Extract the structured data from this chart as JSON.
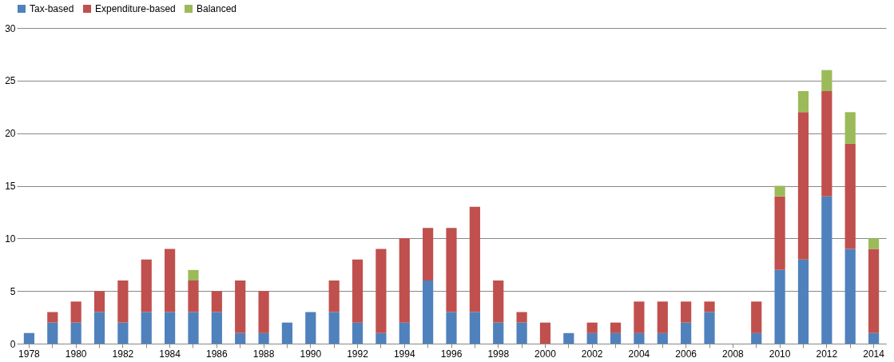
{
  "chart_data": {
    "type": "bar",
    "stacked": true,
    "legend": "top",
    "grid": "y",
    "categories": [
      "1978",
      null,
      "1980",
      null,
      "1982",
      null,
      "1984",
      null,
      "1986",
      null,
      "1988",
      null,
      "1990",
      null,
      "1992",
      null,
      "1994",
      null,
      "1996",
      null,
      "1998",
      null,
      "2000",
      null,
      "2002",
      null,
      "2004",
      null,
      "2006",
      null,
      "2008",
      null,
      "2010",
      null,
      "2012",
      null,
      "2014"
    ],
    "ylim": [
      0,
      30
    ],
    "yticks": [
      0,
      5,
      10,
      15,
      20,
      25,
      30
    ],
    "series": [
      {
        "name": "Tax-based",
        "color": "#4f81bd",
        "values": [
          1,
          2,
          2,
          3,
          2,
          3,
          3,
          3,
          3,
          1,
          1,
          2,
          3,
          3,
          2,
          1,
          2,
          6,
          3,
          3,
          2,
          2,
          0,
          1,
          1,
          1,
          1,
          1,
          2,
          3,
          0,
          1,
          7,
          8,
          14,
          9,
          1
        ]
      },
      {
        "name": "Expenditure-based",
        "color": "#c0504d",
        "values": [
          0,
          1,
          2,
          2,
          4,
          5,
          6,
          3,
          2,
          5,
          4,
          0,
          0,
          3,
          6,
          8,
          8,
          5,
          8,
          10,
          4,
          1,
          2,
          0,
          1,
          1,
          3,
          3,
          2,
          1,
          0,
          3,
          7,
          14,
          10,
          10,
          8
        ]
      },
      {
        "name": "Balanced",
        "color": "#9bbb59",
        "values": [
          0,
          0,
          0,
          0,
          0,
          0,
          0,
          1,
          0,
          0,
          0,
          0,
          0,
          0,
          0,
          0,
          0,
          0,
          0,
          0,
          0,
          0,
          0,
          0,
          0,
          0,
          0,
          0,
          0,
          0,
          0,
          0,
          1,
          2,
          2,
          3,
          1
        ]
      }
    ]
  }
}
